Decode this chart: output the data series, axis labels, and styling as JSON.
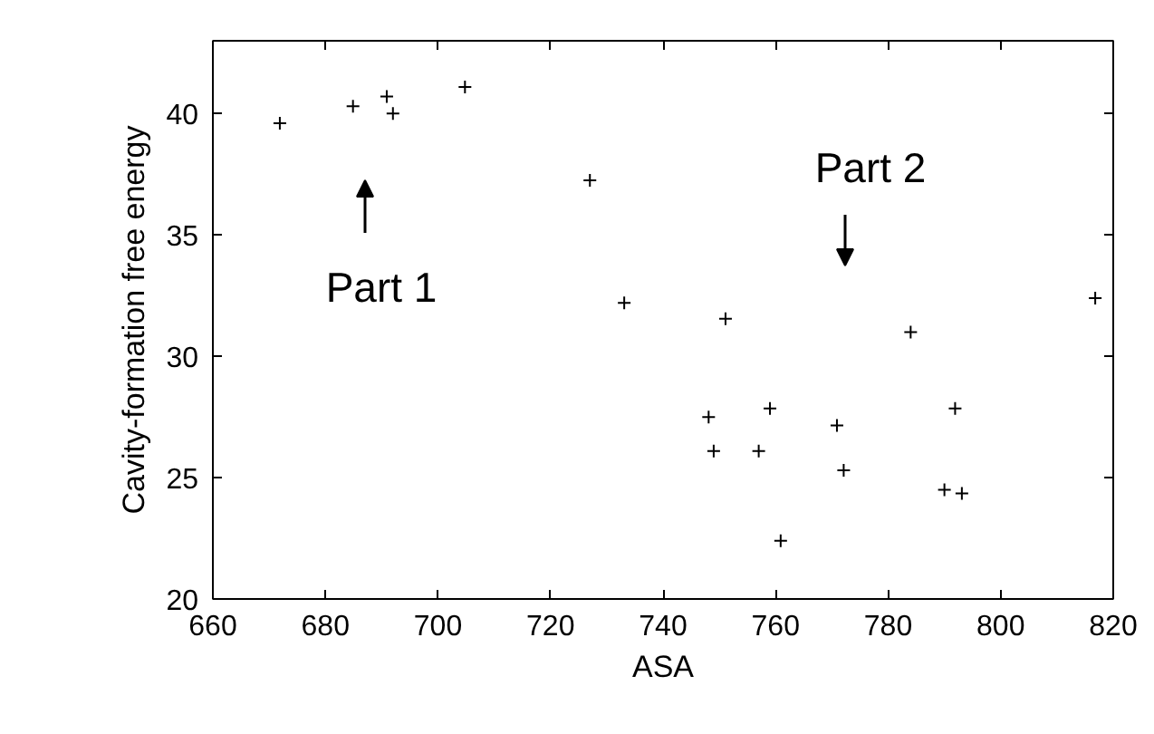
{
  "chart_data": {
    "type": "scatter",
    "xlabel": "ASA",
    "ylabel": "Cavity-formation free energy",
    "x": [
      671.9,
      684.9,
      690.9,
      692.0,
      704.8,
      727.0,
      733.1,
      751.1,
      748.1,
      749.0,
      759.0,
      757.0,
      770.9,
      772.1,
      760.9,
      784.0,
      791.9,
      790.0,
      793.1,
      816.8
    ],
    "series": [
      {
        "color": "#000000",
        "values": [
          39.6,
          40.3,
          40.7,
          40.0,
          41.1,
          37.25,
          32.2,
          31.55,
          27.5,
          26.1,
          27.85,
          26.1,
          27.15,
          25.3,
          22.4,
          31.0,
          27.85,
          24.5,
          24.35,
          32.4
        ]
      }
    ],
    "xlim": [
      660,
      820
    ],
    "ylim": [
      20,
      43
    ],
    "xticks": [
      660,
      680,
      700,
      720,
      740,
      760,
      780,
      800,
      820
    ],
    "yticks": [
      20,
      25,
      30,
      35,
      40
    ],
    "grid": false,
    "marker": "cross",
    "annotations": [
      "Part 1",
      "Part 2"
    ]
  }
}
